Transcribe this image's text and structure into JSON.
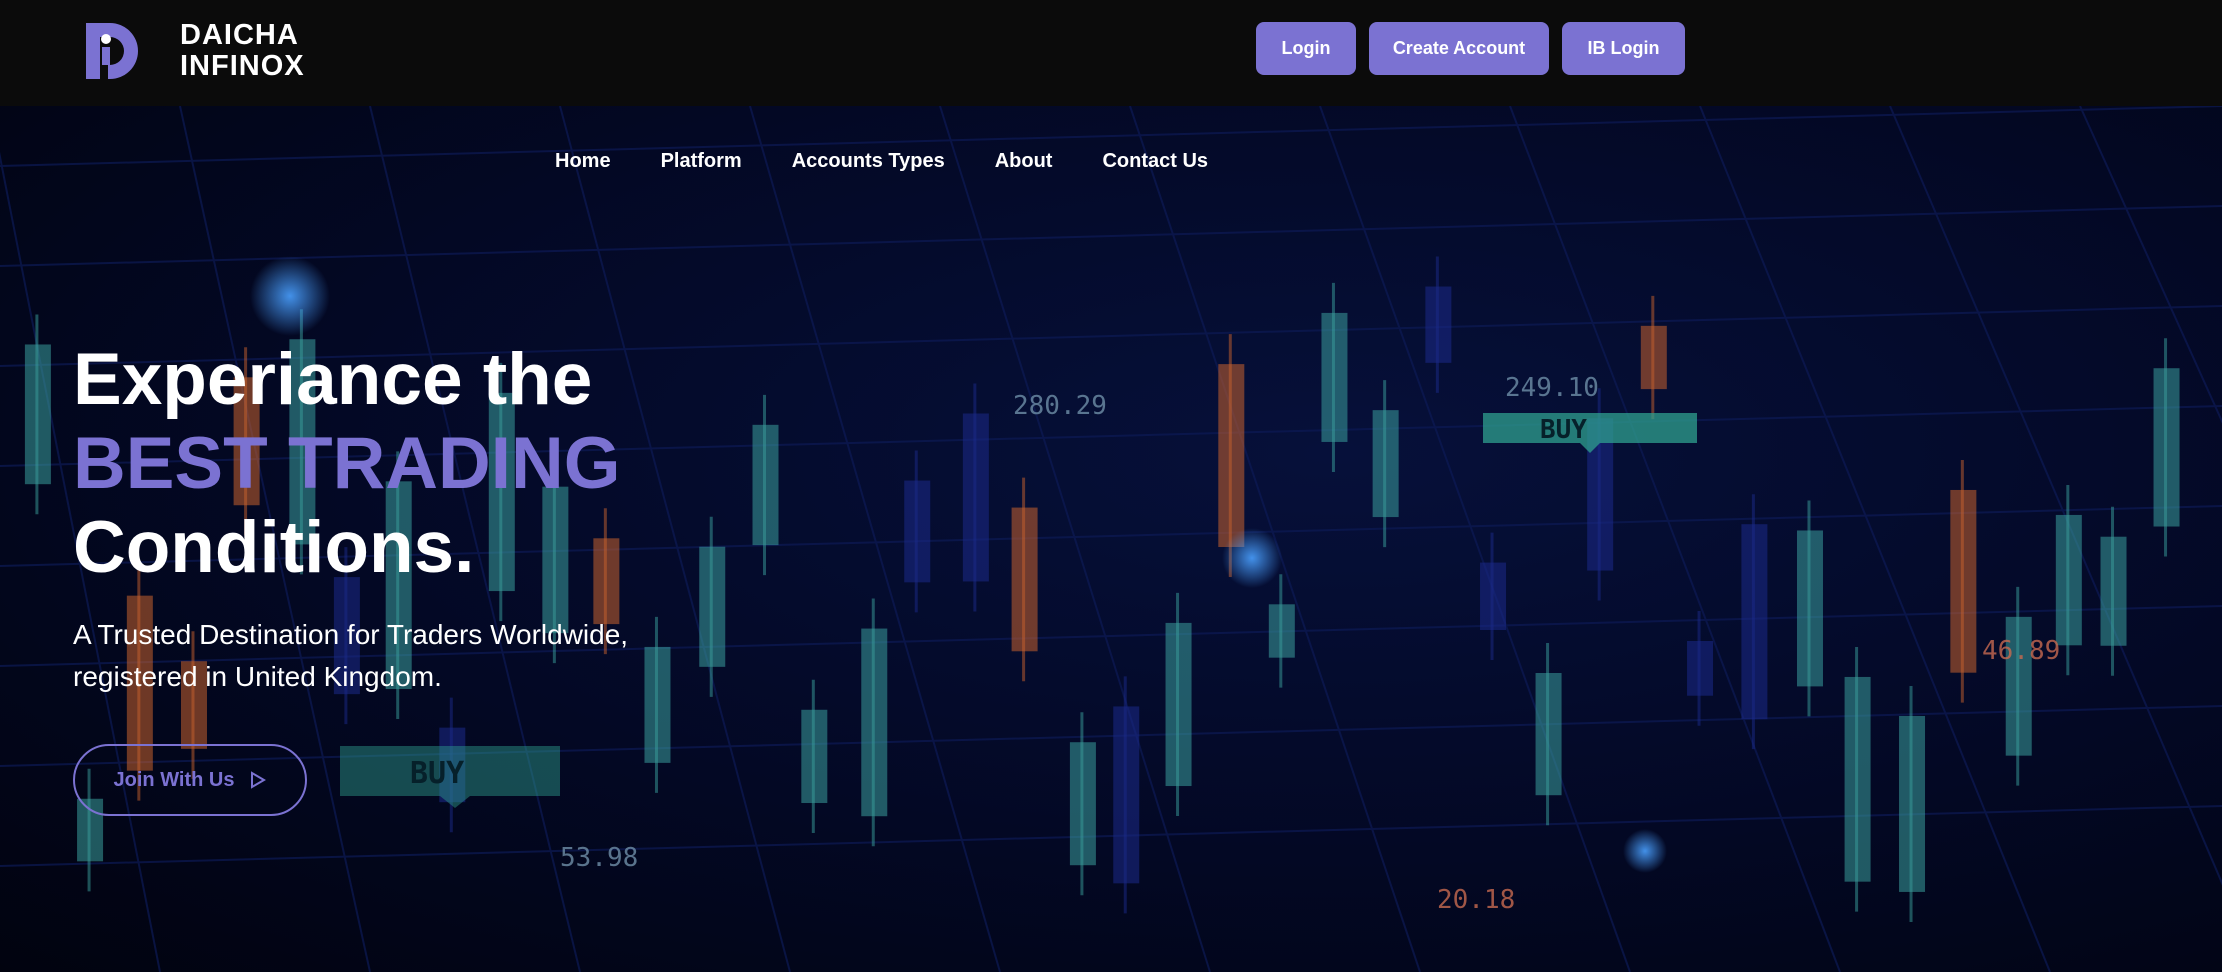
{
  "brand": {
    "line1": "DAICHA",
    "line2": "INFINOX",
    "accent": "#7b72d2"
  },
  "header": {
    "login": "Login",
    "create_account": "Create Account",
    "ib_login": "IB Login"
  },
  "nav": [
    {
      "label": "Home"
    },
    {
      "label": "Platform"
    },
    {
      "label": "Accounts Types"
    },
    {
      "label": "About"
    },
    {
      "label": "Contact Us"
    }
  ],
  "hero": {
    "title_line1": "Experiance the",
    "title_line2": "BEST TRADING",
    "title_line3": "Conditions.",
    "subtitle_line1": "A Trusted Destination for Traders Worldwide,",
    "subtitle_line2": "registered in United Kingdom.",
    "cta": "Join With Us",
    "cta_icon": "play-triangle-icon"
  },
  "background_labels": {
    "p1": "280.29",
    "p2": "249.10",
    "p3": "53.98",
    "p4": "46.89",
    "p5": "20.18",
    "buy": "BUY"
  }
}
